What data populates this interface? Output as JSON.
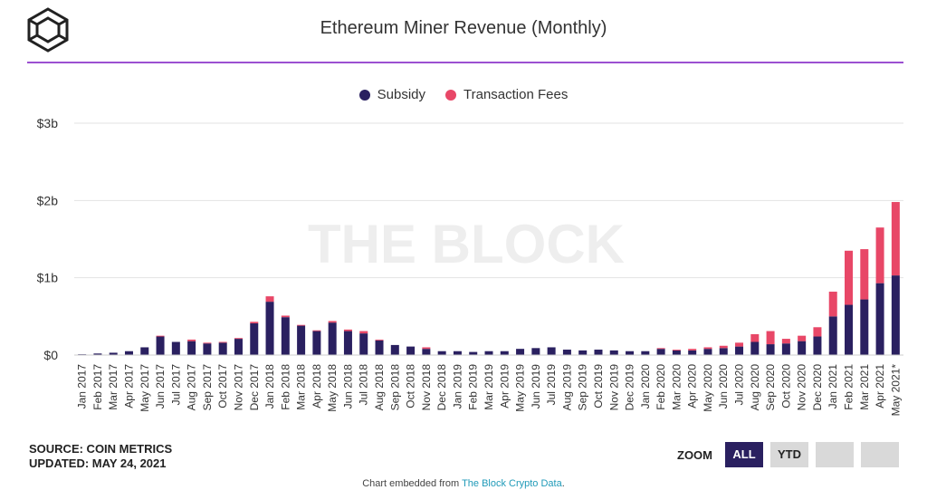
{
  "header": {
    "title": "Ethereum Miner Revenue (Monthly)",
    "logo_icon": "the-block-cube-logo"
  },
  "footer": {
    "source": "SOURCE: COIN METRICS",
    "updated": "UPDATED: MAY 24, 2021",
    "embed_prefix": "Chart embedded from ",
    "embed_link": "The Block Crypto Data",
    "embed_suffix": "."
  },
  "zoom": {
    "label": "ZOOM",
    "buttons": [
      "ALL",
      "YTD",
      "",
      ""
    ],
    "active": "ALL"
  },
  "watermark": "THE BLOCK",
  "colors": {
    "subsidy": "#2a2060",
    "fees": "#e84767",
    "accent": "#9b4fd1"
  },
  "chart_data": {
    "type": "bar",
    "stacked": true,
    "title": "Ethereum Miner Revenue (Monthly)",
    "ylim": [
      0,
      3
    ],
    "y_ticks": [
      {
        "value": 0,
        "label": "$0"
      },
      {
        "value": 1,
        "label": "$1b"
      },
      {
        "value": 2,
        "label": "$2b"
      },
      {
        "value": 3,
        "label": "$3b"
      }
    ],
    "legend_position": "top-center",
    "grid": true,
    "categories": [
      "Jan 2017",
      "Feb 2017",
      "Mar 2017",
      "Apr 2017",
      "May 2017",
      "Jun 2017",
      "Jul 2017",
      "Aug 2017",
      "Sep 2017",
      "Oct 2017",
      "Nov 2017",
      "Dec 2017",
      "Jan 2018",
      "Feb 2018",
      "Mar 2018",
      "Apr 2018",
      "May 2018",
      "Jun 2018",
      "Jul 2018",
      "Aug 2018",
      "Sep 2018",
      "Oct 2018",
      "Nov 2018",
      "Dec 2018",
      "Jan 2019",
      "Feb 2019",
      "Mar 2019",
      "Apr 2019",
      "May 2019",
      "Jun 2019",
      "Jul 2019",
      "Aug 2019",
      "Sep 2019",
      "Oct 2019",
      "Nov 2019",
      "Dec 2019",
      "Jan 2020",
      "Feb 2020",
      "Mar 2020",
      "Apr 2020",
      "May 2020",
      "Jun 2020",
      "Jul 2020",
      "Aug 2020",
      "Sep 2020",
      "Oct 2020",
      "Nov 2020",
      "Dec 2020",
      "Jan 2021",
      "Feb 2021",
      "Mar 2021",
      "Apr 2021",
      "May 2021*"
    ],
    "series": [
      {
        "name": "Subsidy",
        "values": [
          0.01,
          0.02,
          0.03,
          0.05,
          0.1,
          0.24,
          0.17,
          0.18,
          0.15,
          0.16,
          0.21,
          0.41,
          0.69,
          0.49,
          0.38,
          0.31,
          0.42,
          0.31,
          0.28,
          0.19,
          0.13,
          0.11,
          0.08,
          0.05,
          0.05,
          0.04,
          0.05,
          0.05,
          0.08,
          0.09,
          0.1,
          0.07,
          0.06,
          0.07,
          0.06,
          0.05,
          0.05,
          0.08,
          0.06,
          0.06,
          0.08,
          0.09,
          0.11,
          0.17,
          0.14,
          0.15,
          0.18,
          0.24,
          0.5,
          0.65,
          0.72,
          0.93,
          1.03
        ]
      },
      {
        "name": "Transaction Fees",
        "values": [
          0,
          0,
          0,
          0,
          0,
          0.01,
          0,
          0.02,
          0.01,
          0.01,
          0.01,
          0.02,
          0.07,
          0.02,
          0.01,
          0.01,
          0.02,
          0.02,
          0.03,
          0.01,
          0,
          0,
          0.02,
          0,
          0,
          0,
          0,
          0,
          0,
          0,
          0,
          0,
          0,
          0,
          0,
          0,
          0,
          0.01,
          0.01,
          0.02,
          0.02,
          0.03,
          0.05,
          0.1,
          0.17,
          0.06,
          0.07,
          0.12,
          0.32,
          0.7,
          0.65,
          0.72,
          0.95
        ]
      }
    ]
  }
}
